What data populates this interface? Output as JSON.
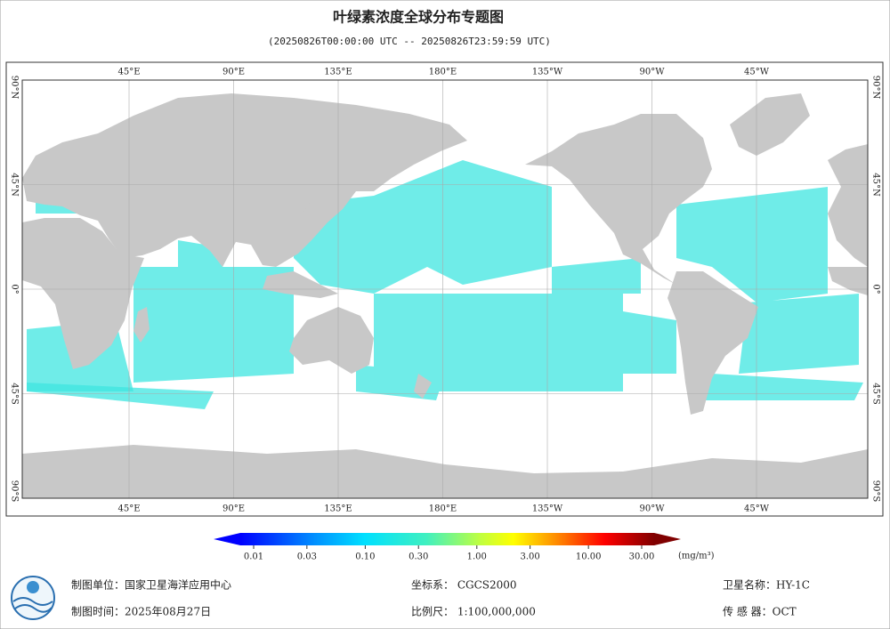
{
  "header": {
    "title": "叶绿素浓度全球分布专题图",
    "subtitle": "(20250826T00:00:00 UTC -- 20250826T23:59:59 UTC)"
  },
  "map": {
    "lon_labels": [
      "45°E",
      "90°E",
      "135°E",
      "180°E",
      "135°W",
      "90°W",
      "45°W"
    ],
    "lat_labels": [
      "90°N",
      "45°N",
      "0°",
      "45°S",
      "90°S"
    ]
  },
  "legend": {
    "scale": "log",
    "ticks": [
      0.01,
      0.03,
      {
        "value": 0.1,
        "label": "0.10"
      },
      {
        "value": 0.3,
        "label": "0.30"
      },
      {
        "value": 1,
        "label": "1.00"
      },
      {
        "value": 3,
        "label": "3.00"
      },
      {
        "value": 10,
        "label": "10.00"
      },
      {
        "value": 30,
        "label": "30.00"
      }
    ],
    "unit": "(mg/m³)"
  },
  "footer": {
    "unit": "制图单位：国家卫星海洋应用中心",
    "date": "制图时间：2025年08月27日",
    "crs": "坐标系：  CGCS2000",
    "scale": "比例尺：  1:100,000,000",
    "satellite": "卫星名称：HY-1C",
    "sensor": "传 感 器：OCT"
  }
}
